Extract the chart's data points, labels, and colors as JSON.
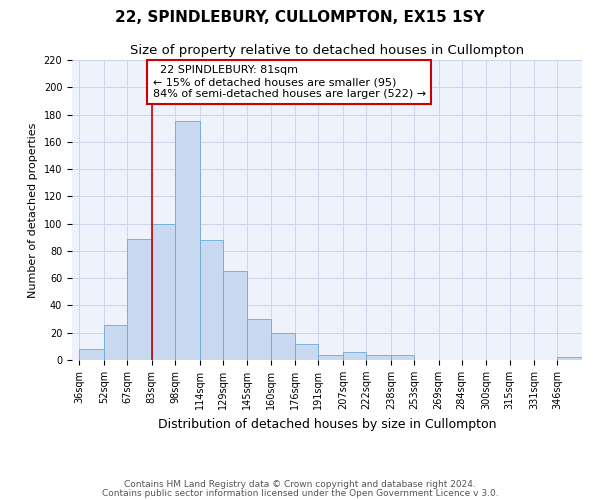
{
  "title": "22, SPINDLEBURY, CULLOMPTON, EX15 1SY",
  "subtitle": "Size of property relative to detached houses in Cullompton",
  "xlabel": "Distribution of detached houses by size in Cullompton",
  "ylabel": "Number of detached properties",
  "bar_values": [
    8,
    26,
    89,
    100,
    175,
    88,
    65,
    30,
    20,
    12,
    4,
    6,
    4,
    4,
    0,
    0,
    0,
    0,
    0,
    0,
    2
  ],
  "bin_labels": [
    "36sqm",
    "52sqm",
    "67sqm",
    "83sqm",
    "98sqm",
    "114sqm",
    "129sqm",
    "145sqm",
    "160sqm",
    "176sqm",
    "191sqm",
    "207sqm",
    "222sqm",
    "238sqm",
    "253sqm",
    "269sqm",
    "284sqm",
    "300sqm",
    "315sqm",
    "331sqm",
    "346sqm"
  ],
  "bin_edges": [
    36,
    52,
    67,
    83,
    98,
    114,
    129,
    145,
    160,
    176,
    191,
    207,
    222,
    238,
    253,
    269,
    284,
    300,
    315,
    331,
    346,
    362
  ],
  "bar_color": "#c8d9f0",
  "bar_edge_color": "#6aaad4",
  "red_line_x": 83,
  "ylim": [
    0,
    220
  ],
  "yticks": [
    0,
    20,
    40,
    60,
    80,
    100,
    120,
    140,
    160,
    180,
    200,
    220
  ],
  "annotation_title": "22 SPINDLEBURY: 81sqm",
  "annotation_line1": "← 15% of detached houses are smaller (95)",
  "annotation_line2": "84% of semi-detached houses are larger (522) →",
  "annotation_box_color": "#ffffff",
  "annotation_box_edge_color": "#cc0000",
  "grid_color": "#ccd5e8",
  "bg_color": "#edf2fb",
  "footnote1": "Contains HM Land Registry data © Crown copyright and database right 2024.",
  "footnote2": "Contains public sector information licensed under the Open Government Licence v 3.0.",
  "title_fontsize": 11,
  "subtitle_fontsize": 9.5,
  "xlabel_fontsize": 9,
  "ylabel_fontsize": 8,
  "tick_fontsize": 7,
  "annotation_fontsize": 8,
  "footnote_fontsize": 6.5
}
